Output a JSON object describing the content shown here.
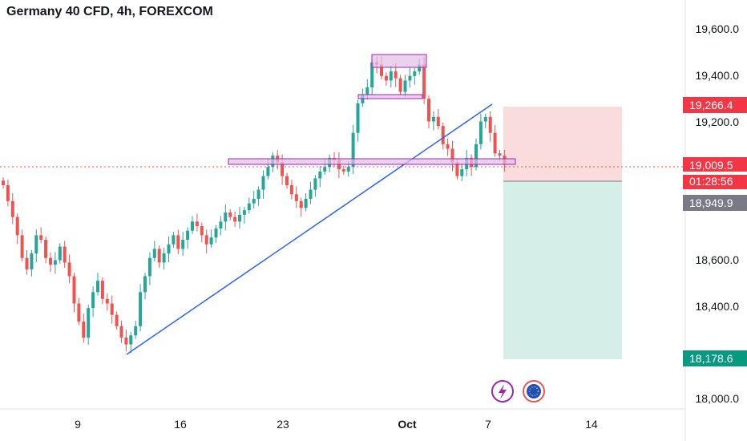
{
  "title": "Germany 40 CFD, 4h, FOREXCOM",
  "price_axis": {
    "ticks": [
      "19,600.0",
      "19,400.0",
      "19,200.0",
      "18,600.0",
      "18,400.0",
      "18,000.0"
    ],
    "stop_loss": "19,266.4",
    "current_price": "19,009.5",
    "countdown": "01:28:56",
    "entry_price": "18,949.9",
    "take_profit": "18,178.6"
  },
  "time_axis": {
    "labels": [
      "9",
      "16",
      "23",
      "Oct",
      "7",
      "14"
    ]
  },
  "icons": [
    "lightning-icon",
    "eu-flag-icon"
  ],
  "colors": {
    "up": "#26a69a",
    "down": "#ef5350",
    "trendline": "#2962ff",
    "zone_fill": "#e1bee7",
    "zone_border": "#9c27b0",
    "stop_zone": "#fbdcdc",
    "target_zone": "#d6eee8"
  },
  "chart_data": {
    "type": "candlestick",
    "instrument": "Germany 40 CFD",
    "timeframe": "4h",
    "source": "FOREXCOM",
    "x_labels": [
      "9",
      "16",
      "23",
      "Oct",
      "7",
      "14"
    ],
    "ylim": [
      17980,
      19700
    ],
    "y_ticks": [
      18000,
      18400,
      18600,
      19200,
      19400,
      19600
    ],
    "closes": [
      18920,
      18850,
      18780,
      18700,
      18600,
      18550,
      18620,
      18700,
      18680,
      18600,
      18570,
      18590,
      18650,
      18580,
      18520,
      18400,
      18320,
      18250,
      18380,
      18450,
      18500,
      18420,
      18400,
      18350,
      18300,
      18250,
      18220,
      18260,
      18300,
      18450,
      18520,
      18600,
      18640,
      18580,
      18620,
      18660,
      18700,
      18640,
      18680,
      18720,
      18760,
      18740,
      18700,
      18660,
      18690,
      18730,
      18760,
      18800,
      18780,
      18760,
      18790,
      18810,
      18840,
      18860,
      18900,
      18960,
      19000,
      19050,
      19020,
      18960,
      18920,
      18880,
      18850,
      18820,
      18860,
      18900,
      18950,
      18980,
      19000,
      19040,
      19030,
      18990,
      18980,
      19000,
      19150,
      19280,
      19320,
      19350,
      19460,
      19450,
      19400,
      19380,
      19420,
      19390,
      19330,
      19380,
      19400,
      19420,
      19450,
      19300,
      19200,
      19220,
      19180,
      19100,
      19080,
      19020,
      18960,
      18990,
      19040,
      19000,
      19100,
      19200,
      19220,
      19150,
      19060,
      19050,
      19009.5
    ],
    "stop_loss": 19266.4,
    "current_price": 19009.5,
    "entry_price": 18949.9,
    "take_profit": 18178.6
  }
}
